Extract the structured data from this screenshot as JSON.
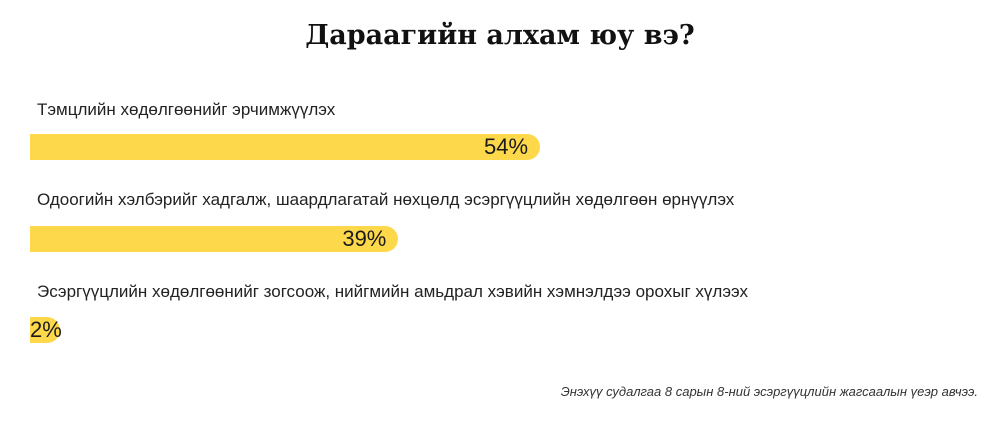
{
  "colors": {
    "bar": "#fdd84a",
    "text": "#1a1a1a",
    "background": "#ffffff"
  },
  "chart_data": {
    "type": "bar",
    "orientation": "horizontal",
    "title": "Дараагийн алхам юу вэ?",
    "categories": [
      "Тэмцлийн хөдөлгөөнийг эрчимжүүлэх",
      "Одоогийн хэлбэрийг хадгалж, шаардлагатай нөхцөлд эсэргүүцлийн хөдөлгөөн өрнүүлэх",
      "Эсэргүүцлийн хөдөлгөөнийг зогсоож, нийгмийн амьдрал хэвийн хэмнэлдээ орохыг хүлээх"
    ],
    "values": [
      54,
      39,
      2
    ],
    "value_labels": [
      "54%",
      "39%",
      "2%"
    ],
    "unit": "%",
    "xlim": [
      0,
      100
    ],
    "grid": false,
    "legend": "none",
    "note": "Энэхүү судалгаа 8 сарын 8-ний эсэргүүцлийн жагсаалын үеэр авчээ."
  }
}
